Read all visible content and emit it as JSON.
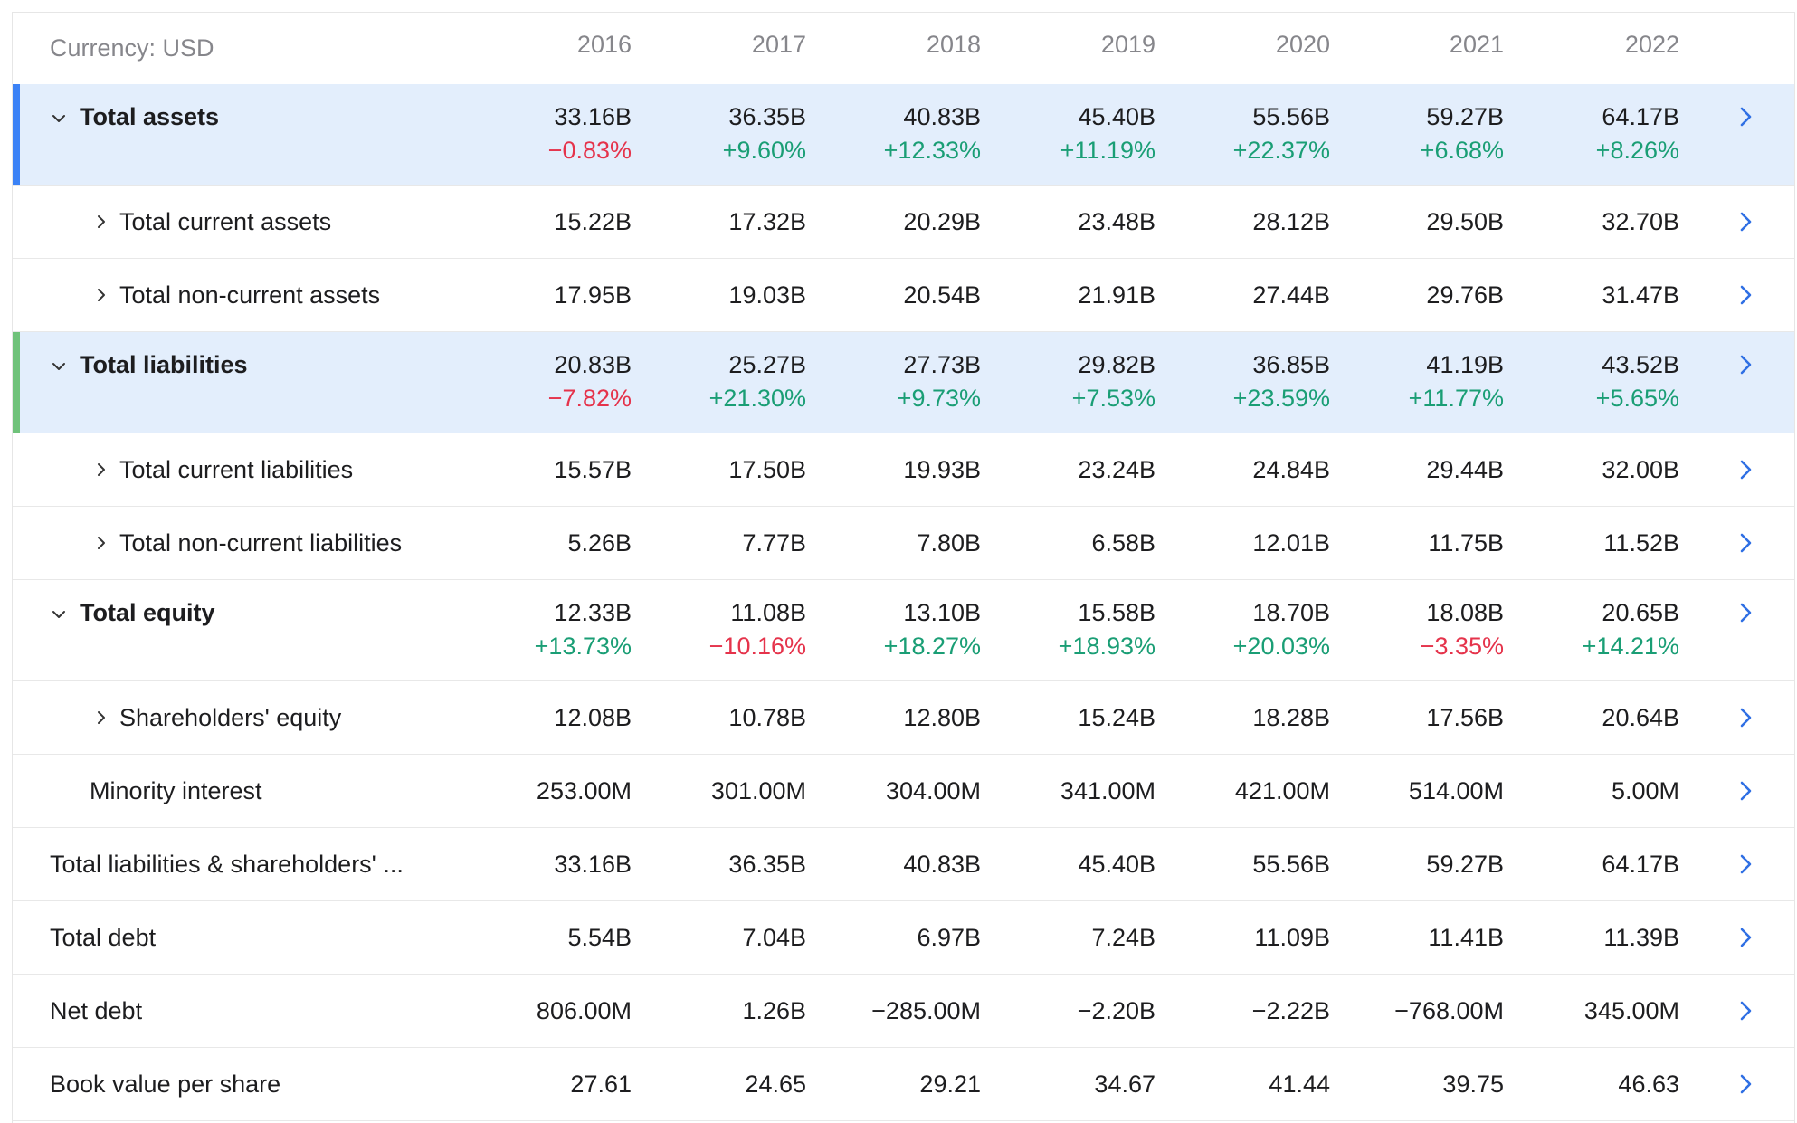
{
  "header": {
    "currency": "Currency: USD",
    "years": [
      "2016",
      "2017",
      "2018",
      "2019",
      "2020",
      "2021",
      "2022"
    ]
  },
  "rows": [
    {
      "label": "Total assets",
      "values": [
        "33.16B",
        "36.35B",
        "40.83B",
        "45.40B",
        "55.56B",
        "59.27B",
        "64.17B"
      ],
      "changes": [
        "−0.83%",
        "+9.60%",
        "+12.33%",
        "+11.19%",
        "+22.37%",
        "+6.68%",
        "+8.26%"
      ]
    },
    {
      "label": "Total current assets",
      "values": [
        "15.22B",
        "17.32B",
        "20.29B",
        "23.48B",
        "28.12B",
        "29.50B",
        "32.70B"
      ]
    },
    {
      "label": "Total non-current assets",
      "values": [
        "17.95B",
        "19.03B",
        "20.54B",
        "21.91B",
        "27.44B",
        "29.76B",
        "31.47B"
      ]
    },
    {
      "label": "Total liabilities",
      "values": [
        "20.83B",
        "25.27B",
        "27.73B",
        "29.82B",
        "36.85B",
        "41.19B",
        "43.52B"
      ],
      "changes": [
        "−7.82%",
        "+21.30%",
        "+9.73%",
        "+7.53%",
        "+23.59%",
        "+11.77%",
        "+5.65%"
      ]
    },
    {
      "label": "Total current liabilities",
      "values": [
        "15.57B",
        "17.50B",
        "19.93B",
        "23.24B",
        "24.84B",
        "29.44B",
        "32.00B"
      ]
    },
    {
      "label": "Total non-current liabilities",
      "values": [
        "5.26B",
        "7.77B",
        "7.80B",
        "6.58B",
        "12.01B",
        "11.75B",
        "11.52B"
      ]
    },
    {
      "label": "Total equity",
      "values": [
        "12.33B",
        "11.08B",
        "13.10B",
        "15.58B",
        "18.70B",
        "18.08B",
        "20.65B"
      ],
      "changes": [
        "+13.73%",
        "−10.16%",
        "+18.27%",
        "+18.93%",
        "+20.03%",
        "−3.35%",
        "+14.21%"
      ]
    },
    {
      "label": "Shareholders' equity",
      "values": [
        "12.08B",
        "10.78B",
        "12.80B",
        "15.24B",
        "18.28B",
        "17.56B",
        "20.64B"
      ]
    },
    {
      "label": "Minority interest",
      "values": [
        "253.00M",
        "301.00M",
        "304.00M",
        "341.00M",
        "421.00M",
        "514.00M",
        "5.00M"
      ]
    },
    {
      "label": "Total liabilities & shareholders' ...",
      "values": [
        "33.16B",
        "36.35B",
        "40.83B",
        "45.40B",
        "55.56B",
        "59.27B",
        "64.17B"
      ]
    },
    {
      "label": "Total debt",
      "values": [
        "5.54B",
        "7.04B",
        "6.97B",
        "7.24B",
        "11.09B",
        "11.41B",
        "11.39B"
      ]
    },
    {
      "label": "Net debt",
      "values": [
        "806.00M",
        "1.26B",
        "−285.00M",
        "−2.20B",
        "−2.22B",
        "−768.00M",
        "345.00M"
      ]
    },
    {
      "label": "Book value per share",
      "values": [
        "27.61",
        "24.65",
        "29.21",
        "34.67",
        "41.44",
        "39.75",
        "46.63"
      ]
    }
  ]
}
